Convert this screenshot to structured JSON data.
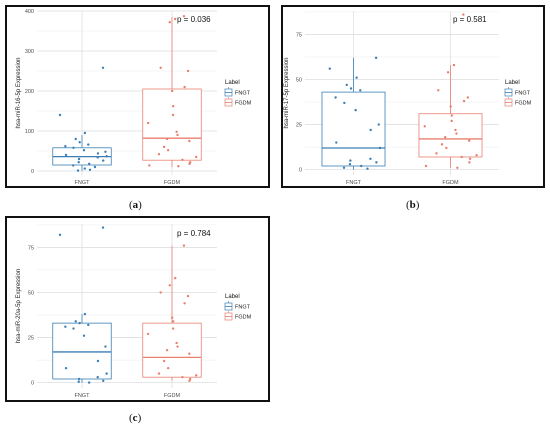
{
  "chart_data": [
    {
      "id": "a",
      "type": "box",
      "caption_letter": "a",
      "pvalue_text": "p = 0.036",
      "ylabel": "hsa-miR-16-5p Expression",
      "xlabel": "",
      "categories": [
        "FNGT",
        "FGDM"
      ],
      "ylim": [
        -10,
        400
      ],
      "yticks": [
        0,
        100,
        200,
        300,
        400
      ],
      "grid": true,
      "legend": {
        "title": "Label",
        "entries": [
          "FNGT",
          "FGDM"
        ],
        "placement": "right"
      },
      "colors": {
        "FNGT": "#3a7fb5",
        "FGDM": "#e8806f"
      },
      "series": [
        {
          "name": "FNGT",
          "stats": {
            "min": 0,
            "q1": 15,
            "median": 36,
            "q3": 58,
            "max": 90
          },
          "points": [
            258,
            140,
            95,
            80,
            72,
            66,
            62,
            58,
            52,
            48,
            44,
            40,
            37,
            34,
            30,
            26,
            22,
            18,
            14,
            10,
            6,
            3,
            1
          ]
        },
        {
          "name": "FGDM",
          "stats": {
            "min": 10,
            "q1": 27,
            "median": 82,
            "q3": 205,
            "max": 385
          },
          "points": [
            387,
            380,
            372,
            258,
            250,
            210,
            200,
            162,
            140,
            120,
            98,
            90,
            80,
            75,
            60,
            52,
            42,
            35,
            28,
            22,
            18,
            14,
            12
          ]
        }
      ]
    },
    {
      "id": "b",
      "type": "box",
      "caption_letter": "b",
      "pvalue_text": "p = 0.581",
      "ylabel": "hsa-miR-17-5p Expression",
      "xlabel": "",
      "categories": [
        "FNGT",
        "FGDM"
      ],
      "ylim": [
        -3,
        88
      ],
      "yticks": [
        0,
        25,
        50,
        75
      ],
      "grid": true,
      "legend": {
        "title": "Label",
        "entries": [
          "FNGT",
          "FGDM"
        ],
        "placement": "right"
      },
      "colors": {
        "FNGT": "#3a7fb5",
        "FGDM": "#e8806f"
      },
      "series": [
        {
          "name": "FNGT",
          "stats": {
            "min": 0,
            "q1": 2,
            "median": 12,
            "q3": 43,
            "max": 62
          },
          "points": [
            62,
            56,
            51,
            47,
            45,
            44,
            40,
            37,
            33,
            25,
            22,
            15,
            12,
            6,
            5,
            4,
            3,
            2,
            1,
            0.5
          ]
        },
        {
          "name": "FGDM",
          "stats": {
            "min": 1,
            "q1": 7,
            "median": 17,
            "q3": 31,
            "max": 58
          },
          "points": [
            86,
            58,
            54,
            44,
            40,
            38,
            35,
            30,
            27,
            24,
            22,
            20,
            18,
            16,
            14,
            12,
            9,
            8,
            7,
            6,
            4,
            2,
            1
          ]
        }
      ]
    },
    {
      "id": "c",
      "type": "box",
      "caption_letter": "c",
      "pvalue_text": "p = 0.784",
      "ylabel": "hsa-miR-20a-5p Expression",
      "xlabel": "",
      "categories": [
        "FNGT",
        "FGDM"
      ],
      "ylim": [
        -3,
        88
      ],
      "yticks": [
        0,
        25,
        50,
        75
      ],
      "grid": true,
      "legend": {
        "title": "Label",
        "entries": [
          "FNGT",
          "FGDM"
        ],
        "placement": "right"
      },
      "colors": {
        "FNGT": "#3a7fb5",
        "FGDM": "#e8806f"
      },
      "series": [
        {
          "name": "FNGT",
          "stats": {
            "min": 0,
            "q1": 2,
            "median": 17,
            "q3": 33,
            "max": 38
          },
          "points": [
            86,
            82,
            38,
            34,
            33,
            32,
            31,
            30,
            26,
            20,
            12,
            8,
            5,
            3,
            2,
            1,
            0.5,
            0
          ]
        },
        {
          "name": "FGDM",
          "stats": {
            "min": 1,
            "q1": 3,
            "median": 14,
            "q3": 33,
            "max": 76
          },
          "points": [
            76,
            58,
            54,
            50,
            48,
            44,
            36,
            34,
            30,
            27,
            22,
            20,
            18,
            16,
            12,
            8,
            5,
            4,
            3,
            2,
            1
          ]
        }
      ]
    }
  ]
}
